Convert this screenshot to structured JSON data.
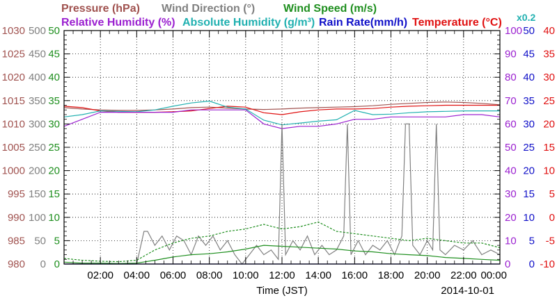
{
  "chart_data": {
    "type": "line",
    "legend": {
      "row1": [
        {
          "text": "Pressure (hPa)",
          "color": "#a0524f"
        },
        {
          "text": "Wind Direction (°)",
          "color": "#808080"
        },
        {
          "text": "Wind Speed (m/s)",
          "color": "#1f8f1f"
        }
      ],
      "row2": [
        {
          "text": "Relative Humidity (%)",
          "color": "#9b20d0"
        },
        {
          "text": "Absolute Humidity (g/m³)",
          "color": "#20b0b0"
        },
        {
          "text": "Rain Rate(mm/h)",
          "color": "#1010c8"
        },
        {
          "text": "Temperature (°C)",
          "color": "#e01010"
        }
      ],
      "rain_scale_note": {
        "text": "x0.2",
        "color": "#20b0b0"
      }
    },
    "xlabel": "Time (JST)",
    "date_label": "2014-10-01",
    "x_ticks": [
      "02:00",
      "04:00",
      "06:00",
      "08:00",
      "10:00",
      "12:00",
      "14:00",
      "16:00",
      "18:00",
      "20:00",
      "22:00",
      "00:00"
    ],
    "x_range_hours": [
      0,
      24
    ],
    "axes": {
      "pressure": {
        "color": "#a0524f",
        "range": [
          980,
          1030
        ],
        "ticks": [
          "980",
          "985",
          "990",
          "995",
          "1000",
          "1005",
          "1010",
          "1015",
          "1020",
          "1025",
          "1030"
        ]
      },
      "wind_direction": {
        "color": "#808080",
        "range": [
          0,
          500
        ],
        "ticks": [
          "0",
          "50",
          "100",
          "150",
          "200",
          "250",
          "300",
          "350",
          "400",
          "450",
          "500"
        ]
      },
      "wind_speed": {
        "color": "#1f8f1f",
        "range": [
          0,
          50
        ],
        "ticks": [
          "0",
          "5",
          "10",
          "15",
          "20",
          "25",
          "30",
          "35",
          "40",
          "45",
          "50"
        ]
      },
      "humidity": {
        "color": "#9b20d0",
        "range": [
          0,
          100
        ],
        "ticks": [
          "0",
          "10",
          "20",
          "30",
          "40",
          "50",
          "60",
          "70",
          "80",
          "90",
          "100"
        ]
      },
      "rain_rate": {
        "color": "#1010c8",
        "range": [
          0,
          50
        ],
        "ticks": [
          "0",
          "5",
          "10",
          "15",
          "20",
          "25",
          "30",
          "35",
          "40",
          "45",
          "50"
        ]
      },
      "temperature": {
        "color": "#e01010",
        "range": [
          -10,
          40
        ],
        "ticks": [
          "-10",
          "-5",
          "0",
          "5",
          "10",
          "15",
          "20",
          "25",
          "30",
          "35",
          "40"
        ]
      }
    },
    "grid": true,
    "series": [
      {
        "name": "Pressure (hPa)",
        "axis": "pressure",
        "color": "#a0524f",
        "x": [
          0,
          1,
          2,
          3,
          4,
          5,
          6,
          7,
          8,
          9,
          10,
          11,
          12,
          13,
          14,
          15,
          16,
          17,
          18,
          19,
          20,
          21,
          22,
          23,
          24
        ],
        "y": [
          1013.5,
          1013.2,
          1013.0,
          1012.9,
          1012.9,
          1013.0,
          1013.2,
          1013.5,
          1013.6,
          1013.4,
          1013.2,
          1013.1,
          1013.2,
          1013.4,
          1013.5,
          1013.6,
          1013.7,
          1013.9,
          1014.2,
          1014.4,
          1014.6,
          1014.7,
          1014.6,
          1014.4,
          1014.1
        ]
      },
      {
        "name": "Temperature (°C)",
        "axis": "temperature",
        "color": "#e01010",
        "x": [
          0,
          1,
          2,
          3,
          4,
          5,
          6,
          7,
          8,
          9,
          10,
          11,
          12,
          13,
          14,
          15,
          16,
          17,
          18,
          19,
          20,
          21,
          22,
          23,
          24
        ],
        "y": [
          23.8,
          23.5,
          22.8,
          22.5,
          22.5,
          22.5,
          22.6,
          22.8,
          23.3,
          23.8,
          23.6,
          22.4,
          22.0,
          22.6,
          23.0,
          23.2,
          23.2,
          23.3,
          23.6,
          23.8,
          23.9,
          24.0,
          24.0,
          24.0,
          24.0
        ]
      },
      {
        "name": "Absolute Humidity (g/m³)",
        "axis": "wind_speed",
        "color": "#20b0b0",
        "x": [
          0,
          1,
          2,
          3,
          4,
          5,
          6,
          7,
          8,
          9,
          10,
          11,
          12,
          13,
          14,
          15,
          16,
          17,
          18,
          19,
          20,
          21,
          22,
          23,
          24
        ],
        "y": [
          31.5,
          32.0,
          32.8,
          32.7,
          32.6,
          33.0,
          33.8,
          34.5,
          34.9,
          33.6,
          33.2,
          30.8,
          29.8,
          30.2,
          30.6,
          30.9,
          32.9,
          32.0,
          32.1,
          32.4,
          32.6,
          32.7,
          32.8,
          32.8,
          32.8
        ]
      },
      {
        "name": "Relative Humidity (%)",
        "axis": "humidity",
        "color": "#9b20d0",
        "x": [
          0,
          1,
          2,
          3,
          4,
          5,
          6,
          7,
          8,
          9,
          10,
          11,
          12,
          13,
          14,
          15,
          16,
          17,
          18,
          19,
          20,
          21,
          22,
          23,
          24
        ],
        "y": [
          59,
          62,
          65,
          65,
          65,
          65,
          65,
          66,
          66,
          66,
          66,
          60,
          58,
          59,
          59,
          60,
          62,
          62,
          63,
          63,
          63,
          63,
          64,
          64,
          63
        ]
      },
      {
        "name": "Wind Direction (°)",
        "axis": "wind_direction",
        "color": "#808080",
        "x": [
          0,
          4,
          4.4,
          4.6,
          5.0,
          5.4,
          5.8,
          6.2,
          6.6,
          7.0,
          7.4,
          7.8,
          8.2,
          8.6,
          9.0,
          9.4,
          9.8,
          10.2,
          10.6,
          11.0,
          11.4,
          11.8,
          12.0,
          12.2,
          12.6,
          13.0,
          13.4,
          13.8,
          14.2,
          14.6,
          15.0,
          15.4,
          15.6,
          15.8,
          16.2,
          16.6,
          17.0,
          17.4,
          17.8,
          18.2,
          18.6,
          18.8,
          19.0,
          19.2,
          19.6,
          20.0,
          20.3,
          20.5,
          20.7,
          21.0,
          21.5,
          22.0,
          22.5,
          23.0,
          23.5,
          24.0
        ],
        "y": [
          0,
          0,
          70,
          70,
          40,
          60,
          30,
          60,
          50,
          20,
          60,
          40,
          60,
          30,
          50,
          20,
          0,
          20,
          40,
          20,
          30,
          10,
          300,
          20,
          50,
          30,
          60,
          20,
          40,
          20,
          30,
          60,
          300,
          20,
          50,
          20,
          40,
          30,
          50,
          20,
          60,
          300,
          300,
          40,
          20,
          50,
          30,
          300,
          30,
          20,
          40,
          30,
          50,
          20,
          30,
          20
        ]
      },
      {
        "name": "Wind Speed (m/s)",
        "axis": "wind_speed",
        "color": "#1f8f1f",
        "x": [
          0,
          1,
          2,
          3,
          4,
          5,
          6,
          7,
          8,
          9,
          10,
          11,
          12,
          13,
          14,
          15,
          16,
          17,
          18,
          19,
          20,
          21,
          22,
          23,
          24
        ],
        "y": [
          0.4,
          0.2,
          0.2,
          0.1,
          0.2,
          0.8,
          1.5,
          2.0,
          2.2,
          2.6,
          3.2,
          4.0,
          3.8,
          3.6,
          3.4,
          3.2,
          2.8,
          2.6,
          2.2,
          2.0,
          1.8,
          1.4,
          1.2,
          1.0,
          0.8
        ]
      },
      {
        "name": "Wind Gust (m/s)",
        "axis": "wind_speed",
        "color": "#1f8f1f",
        "dashed": true,
        "x": [
          0,
          1,
          2,
          3,
          4,
          5,
          6,
          7,
          8,
          9,
          10,
          11,
          12,
          13,
          14,
          15,
          16,
          17,
          18,
          19,
          20,
          21,
          22,
          23,
          24
        ],
        "y": [
          1.2,
          0.8,
          0.6,
          0.5,
          0.8,
          3.0,
          4.5,
          5.5,
          6.0,
          7.0,
          7.5,
          8.5,
          7.5,
          8.0,
          9.0,
          7.0,
          6.5,
          6.0,
          5.5,
          5.0,
          5.5,
          5.0,
          4.5,
          4.5,
          3.5
        ]
      },
      {
        "name": "Rain Rate(mm/h)",
        "axis": "rain_rate",
        "color": "#1010c8",
        "x": [
          0,
          24
        ],
        "y": [
          0,
          0
        ]
      }
    ]
  }
}
